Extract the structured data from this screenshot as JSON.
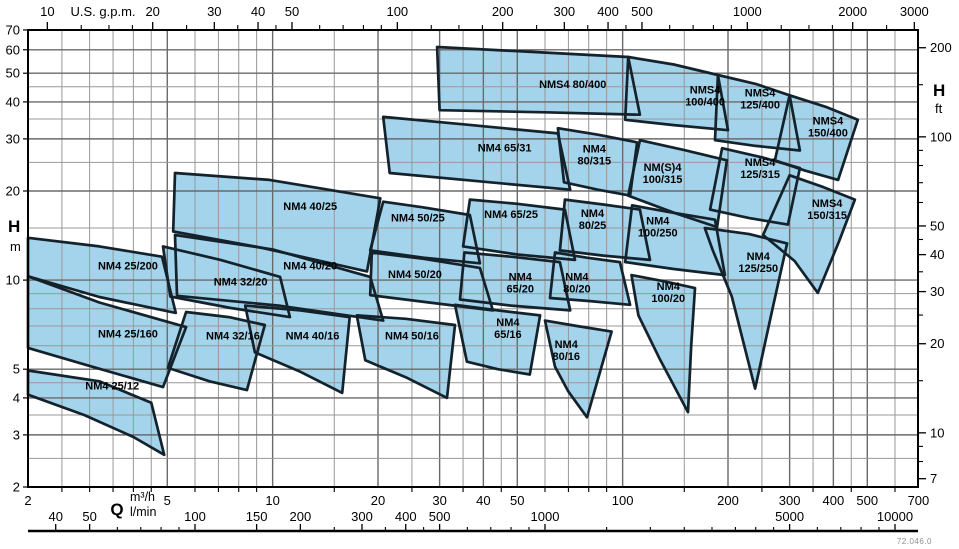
{
  "chart_data": {
    "type": "area",
    "description": "Pump selection chart: head H versus flow Q envelopes, log-log scales",
    "footnote": "72.046.0",
    "colors": {
      "fill": "#a4d4ec",
      "outline": "#14222c",
      "grid_major": "#6a6a6a",
      "grid_minor": "#989898",
      "axis": "#000000",
      "text": "#000000"
    },
    "axes": {
      "x_m3h": {
        "label": "Q",
        "unit": "m³/h",
        "min": 2,
        "max": 700,
        "labeled": [
          2,
          5,
          10,
          20,
          30,
          40,
          50,
          100,
          200,
          300,
          400,
          500,
          700
        ],
        "gridlines": [
          2.5,
          3,
          3.5,
          4,
          4.5,
          5,
          6,
          7,
          8,
          9,
          10,
          15,
          20,
          25,
          30,
          35,
          40,
          45,
          50,
          60,
          70,
          80,
          90,
          100,
          150,
          200,
          250,
          300,
          350,
          400,
          450,
          500,
          600
        ]
      },
      "x_lmin": {
        "unit": "l/min",
        "labeled": [
          40,
          50,
          100,
          150,
          200,
          300,
          400,
          500,
          1000,
          5000,
          10000
        ],
        "ticks": [
          60,
          70,
          80,
          90,
          250,
          350,
          450,
          600,
          700,
          800,
          900,
          1500,
          2000,
          2500,
          3000,
          3500,
          4000,
          4500,
          6000,
          7000,
          8000,
          9000
        ]
      },
      "x_gpm": {
        "label": "U.S. g.p.m.",
        "labeled": [
          10,
          20,
          30,
          40,
          50,
          100,
          200,
          300,
          400,
          500,
          1000,
          2000,
          3000
        ],
        "ticks": [
          12.5,
          15,
          17.5,
          25,
          35,
          45,
          60,
          70,
          80,
          90,
          125,
          150,
          175,
          250,
          350,
          450,
          600,
          700,
          800,
          900,
          1250,
          1500,
          1750,
          2500
        ]
      },
      "y_m": {
        "label": "H",
        "unit": "m",
        "min": 2,
        "max": 70,
        "labeled": [
          2,
          3,
          4,
          5,
          10,
          20,
          30,
          40,
          50,
          60,
          70
        ],
        "gridlines": [
          2.5,
          3,
          3.5,
          4,
          4.5,
          5,
          6,
          7,
          8,
          9,
          10,
          15,
          20,
          25,
          30,
          35,
          40,
          45,
          50,
          60
        ]
      },
      "y_ft": {
        "label": "H",
        "unit": "ft",
        "labeled": [
          7,
          10,
          20,
          30,
          40,
          50,
          100,
          200
        ],
        "ticks": [
          8,
          9,
          15,
          25,
          35,
          45,
          60,
          70,
          80,
          90,
          150
        ]
      }
    },
    "series": [
      {
        "name": "NM4 25/12",
        "lines": [
          "NM4 25/12"
        ],
        "label_at": [
          3.48,
          4.4
        ],
        "points": [
          [
            2,
            4.95
          ],
          [
            3.2,
            4.55
          ],
          [
            4.5,
            3.85
          ],
          [
            4.9,
            2.57
          ],
          [
            4.0,
            2.95
          ],
          [
            2.9,
            3.5
          ],
          [
            2,
            4.1
          ]
        ]
      },
      {
        "name": "NM4 25/160",
        "lines": [
          "NM4 25/160"
        ],
        "label_at": [
          3.86,
          6.6
        ],
        "points": [
          [
            2,
            10.3
          ],
          [
            3.2,
            8.4
          ],
          [
            5.66,
            6.94
          ],
          [
            4.86,
            4.35
          ],
          [
            3.0,
            5.13
          ],
          [
            2,
            5.9
          ]
        ]
      },
      {
        "name": "NM4 25/200",
        "lines": [
          "NM4 25/200"
        ],
        "label_at": [
          3.86,
          11.2
        ],
        "points": [
          [
            2,
            13.9
          ],
          [
            3.2,
            13.0
          ],
          [
            4.83,
            12.0
          ],
          [
            5.29,
            7.75
          ],
          [
            3.2,
            8.77
          ],
          [
            2,
            10.3
          ]
        ]
      },
      {
        "name": "NM4 32/16",
        "lines": [
          "NM4 32/16"
        ],
        "label_at": [
          7.7,
          6.5
        ],
        "points": [
          [
            5.66,
            7.8
          ],
          [
            7.5,
            7.5
          ],
          [
            9.5,
            7.05
          ],
          [
            8.44,
            4.25
          ],
          [
            6.6,
            4.55
          ],
          [
            5.02,
            5.05
          ]
        ]
      },
      {
        "name": "NM4 32/20",
        "lines": [
          "NM4 32/20"
        ],
        "label_at": [
          8.1,
          9.9
        ],
        "points": [
          [
            4.86,
            13.0
          ],
          [
            7.1,
            11.7
          ],
          [
            10.5,
            10.25
          ],
          [
            11.2,
            7.5
          ],
          [
            7.6,
            8.05
          ],
          [
            5.1,
            8.8
          ]
        ]
      },
      {
        "name": "NM4 40/16",
        "lines": [
          "NM4 40/16"
        ],
        "label_at": [
          13,
          6.5
        ],
        "points": [
          [
            8.35,
            8.2
          ],
          [
            12,
            7.9
          ],
          [
            16.6,
            7.5
          ],
          [
            15.8,
            4.16
          ],
          [
            12,
            4.9
          ],
          [
            8.9,
            5.7
          ]
        ]
      },
      {
        "name": "NM4 40/20",
        "lines": [
          "NM4 40/20"
        ],
        "label_at": [
          12.8,
          11.2
        ],
        "points": [
          [
            5.26,
            14.2
          ],
          [
            10,
            12.7
          ],
          [
            19,
            10.25
          ],
          [
            20.7,
            7.3
          ],
          [
            10.4,
            8.2
          ],
          [
            5.33,
            8.85
          ]
        ]
      },
      {
        "name": "NM4 40/25",
        "lines": [
          "NM4 40/25"
        ],
        "label_at": [
          12.8,
          17.8
        ],
        "points": [
          [
            5.26,
            23
          ],
          [
            9.8,
            21.8
          ],
          [
            20.3,
            18.9
          ],
          [
            18.6,
            10.7
          ],
          [
            9.2,
            12.9
          ],
          [
            5.2,
            14.6
          ]
        ]
      },
      {
        "name": "NM4 50/16",
        "lines": [
          "NM4 50/16"
        ],
        "label_at": [
          25,
          6.5
        ],
        "points": [
          [
            17.4,
            7.6
          ],
          [
            24,
            7.4
          ],
          [
            33.2,
            7.05
          ],
          [
            31.5,
            4.0
          ],
          [
            24,
            4.7
          ],
          [
            18.4,
            5.36
          ]
        ]
      },
      {
        "name": "NM4 50/20",
        "lines": [
          "NM4 50/20"
        ],
        "label_at": [
          25.5,
          10.5
        ],
        "points": [
          [
            19.2,
            12.4
          ],
          [
            27,
            11.8
          ],
          [
            39.1,
            11.0
          ],
          [
            42.6,
            7.9
          ],
          [
            28,
            8.4
          ],
          [
            19,
            8.9
          ]
        ]
      },
      {
        "name": "NM4 50/25",
        "lines": [
          "NM4 50/25"
        ],
        "label_at": [
          26,
          16.3
        ],
        "points": [
          [
            20.7,
            18.4
          ],
          [
            27,
            17.6
          ],
          [
            36.6,
            16.6
          ],
          [
            39.1,
            11.4
          ],
          [
            27,
            11.9
          ],
          [
            19,
            12.6
          ]
        ]
      },
      {
        "name": "NM4 65/16",
        "lines": [
          "NM4",
          "65/16"
        ],
        "label_at": [
          47,
          6.9
        ],
        "points": [
          [
            33.2,
            8.25
          ],
          [
            44,
            7.9
          ],
          [
            58.1,
            7.6
          ],
          [
            54.3,
            4.8
          ],
          [
            44,
            5.0
          ],
          [
            35.9,
            5.3
          ]
        ]
      },
      {
        "name": "NM4 65/20",
        "lines": [
          "NM4",
          "65/20"
        ],
        "label_at": [
          51,
          9.8
        ],
        "points": [
          [
            35.3,
            12.4
          ],
          [
            48,
            12.0
          ],
          [
            66.2,
            11.5
          ],
          [
            70.8,
            7.9
          ],
          [
            48,
            8.2
          ],
          [
            34.3,
            8.6
          ]
        ]
      },
      {
        "name": "NM4 65/25",
        "lines": [
          "NM4 65/25"
        ],
        "label_at": [
          48,
          16.7
        ],
        "points": [
          [
            36.6,
            18.7
          ],
          [
            50,
            18.1
          ],
          [
            68.4,
            17.3
          ],
          [
            73.1,
            11.7
          ],
          [
            50,
            12.2
          ],
          [
            35,
            13
          ]
        ]
      },
      {
        "name": "NM4 65/31",
        "lines": [
          "NM4 65/31"
        ],
        "label_at": [
          46,
          28
        ],
        "points": [
          [
            20.7,
            35.6
          ],
          [
            36,
            33.5
          ],
          [
            65.3,
            31.3
          ],
          [
            70.8,
            20.2
          ],
          [
            40,
            21.5
          ],
          [
            21.6,
            23.0
          ]
        ]
      },
      {
        "name": "NM4 80/16",
        "lines": [
          "NM4",
          "80/16"
        ],
        "label_at": [
          69,
          5.8
        ],
        "points": [
          [
            60,
            7.3
          ],
          [
            74,
            7.0
          ],
          [
            93,
            6.7
          ],
          [
            79.1,
            3.44
          ],
          [
            70,
            4.2
          ],
          [
            64.1,
            5.1
          ]
        ]
      },
      {
        "name": "NM4 80/20",
        "lines": [
          "NM4",
          "80/20"
        ],
        "label_at": [
          74,
          9.8
        ],
        "points": [
          [
            64.1,
            12.4
          ],
          [
            79,
            11.9
          ],
          [
            98.2,
            11.5
          ],
          [
            105,
            8.25
          ],
          [
            80,
            8.5
          ],
          [
            62,
            8.7
          ]
        ]
      },
      {
        "name": "NM4 80/25",
        "lines": [
          "NM4",
          "80/25"
        ],
        "label_at": [
          82,
          16.1
        ],
        "points": [
          [
            68.4,
            18.7
          ],
          [
            88,
            18.0
          ],
          [
            112,
            17.3
          ],
          [
            119.7,
            11.7
          ],
          [
            88,
            12.1
          ],
          [
            66.2,
            12.6
          ]
        ]
      },
      {
        "name": "NM4 80/315",
        "lines": [
          "NM4",
          "80/315"
        ],
        "label_at": [
          83,
          26.6
        ],
        "points": [
          [
            65.3,
            32.6
          ],
          [
            85,
            31
          ],
          [
            110,
            29.2
          ],
          [
            105,
            19.3
          ],
          [
            85,
            20.2
          ],
          [
            68,
            21.4
          ]
        ]
      },
      {
        "name": "NMS4 80/400",
        "lines": [
          "NMS4 80/400"
        ],
        "label_at": [
          72,
          46
        ],
        "points": [
          [
            29.5,
            61.3
          ],
          [
            55,
            59
          ],
          [
            103.7,
            56.7
          ],
          [
            112,
            36.2
          ],
          [
            60,
            36.9
          ],
          [
            30,
            37.5
          ]
        ]
      },
      {
        "name": "NM4 100/20",
        "lines": [
          "NM4",
          "100/20"
        ],
        "label_at": [
          135,
          9.1
        ],
        "points": [
          [
            106,
            10.4
          ],
          [
            132,
            9.9
          ],
          [
            161,
            9.4
          ],
          [
            157,
            6.0
          ],
          [
            153.7,
            3.58
          ],
          [
            127.8,
            5.4
          ],
          [
            110.9,
            7.6
          ]
        ]
      },
      {
        "name": "NM4 100/250",
        "lines": [
          "NM4",
          "100/250"
        ],
        "label_at": [
          126,
          15.2
        ],
        "points": [
          [
            106.4,
            17.9
          ],
          [
            135,
            17
          ],
          [
            183.6,
            16
          ],
          [
            196,
            10.4
          ],
          [
            140,
            10.9
          ],
          [
            101.7,
            11.5
          ]
        ]
      },
      {
        "name": "NM(S)4 100/315",
        "lines": [
          "NM(S)4",
          "100/315"
        ],
        "label_at": [
          130,
          23
        ],
        "points": [
          [
            112,
            29.7
          ],
          [
            150,
            27.5
          ],
          [
            198.6,
            25.4
          ],
          [
            186.2,
            15.1
          ],
          [
            140,
            16.9
          ],
          [
            103.7,
            19.3
          ]
        ]
      },
      {
        "name": "NMS4 100/400",
        "lines": [
          "NMS4",
          "100/400"
        ],
        "label_at": [
          172,
          42
        ],
        "points": [
          [
            103.7,
            56.7
          ],
          [
            140,
            53.5
          ],
          [
            187.2,
            49.3
          ],
          [
            200,
            32.1
          ],
          [
            140,
            33.4
          ],
          [
            101.7,
            34.8
          ]
        ]
      },
      {
        "name": "NM4 125/250",
        "lines": [
          "NM4",
          "125/250"
        ],
        "label_at": [
          244,
          11.5
        ],
        "points": [
          [
            171.7,
            15
          ],
          [
            230,
            14.3
          ],
          [
            295,
            13.3
          ],
          [
            268,
            8.0
          ],
          [
            239,
            4.3
          ],
          [
            205,
            8.8
          ],
          [
            181,
            12.6
          ]
        ]
      },
      {
        "name": "NMS4 125/315",
        "lines": [
          "NMS4",
          "125/315"
        ],
        "label_at": [
          247,
          23.9
        ],
        "points": [
          [
            192.4,
            27.9
          ],
          [
            250,
            26
          ],
          [
            321,
            23.9
          ],
          [
            296.6,
            15.4
          ],
          [
            230,
            16.2
          ],
          [
            177.8,
            17.3
          ]
        ]
      },
      {
        "name": "NMS4 125/400",
        "lines": [
          "NMS4",
          "125/400"
        ],
        "label_at": [
          247,
          41
        ],
        "points": [
          [
            187.2,
            49.3
          ],
          [
            240,
            46
          ],
          [
            300,
            42.1
          ],
          [
            321,
            27.4
          ],
          [
            240,
            28.4
          ],
          [
            183.6,
            29.7
          ]
        ]
      },
      {
        "name": "NMS4 150/315",
        "lines": [
          "NMS4",
          "150/315"
        ],
        "label_at": [
          384,
          17.4
        ],
        "points": [
          [
            300,
            22.6
          ],
          [
            375,
            20.6
          ],
          [
            461,
            18.7
          ],
          [
            415,
            13.5
          ],
          [
            361,
            9.05
          ],
          [
            310,
            11.6
          ],
          [
            252,
            14.2
          ]
        ]
      },
      {
        "name": "NMS4 150/400",
        "lines": [
          "NMS4",
          "150/400"
        ],
        "label_at": [
          386,
          33
        ],
        "points": [
          [
            300,
            42.1
          ],
          [
            380,
            38.5
          ],
          [
            469.8,
            34.8
          ],
          [
            412.6,
            21.8
          ],
          [
            330,
            23.5
          ],
          [
            272.3,
            25.4
          ]
        ]
      }
    ]
  }
}
